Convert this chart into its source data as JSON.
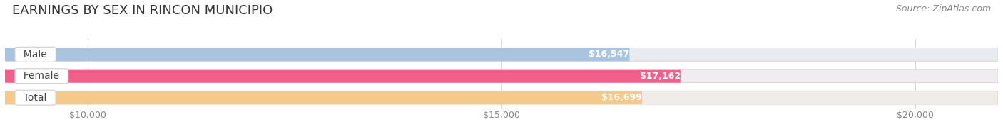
{
  "title": "EARNINGS BY SEX IN RINCON MUNICIPIO",
  "source": "Source: ZipAtlas.com",
  "categories": [
    "Male",
    "Female",
    "Total"
  ],
  "values": [
    16547,
    17162,
    16699
  ],
  "labels": [
    "$16,547",
    "$17,162",
    "$16,699"
  ],
  "bar_colors": [
    "#a8c4e0",
    "#f0608a",
    "#f5c98a"
  ],
  "bar_bg_colors": [
    "#e8ecf0",
    "#f0ecf0",
    "#f0ece8"
  ],
  "xlim_min": 9000,
  "xlim_max": 21000,
  "data_min": 0,
  "xticks": [
    10000,
    15000,
    20000
  ],
  "xticklabels": [
    "$10,000",
    "$15,000",
    "$20,000"
  ],
  "title_fontsize": 13,
  "source_fontsize": 9,
  "label_fontsize": 9,
  "category_fontsize": 10,
  "background_color": "#ffffff",
  "grid_color": "#d8d8d8",
  "tick_color": "#888888"
}
